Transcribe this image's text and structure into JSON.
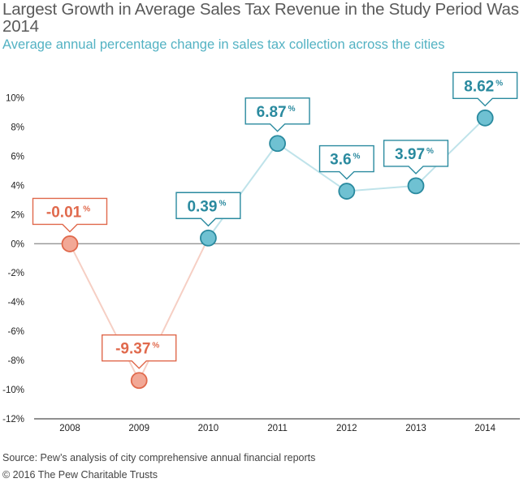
{
  "title": "Largest Growth in Average Sales Tax Revenue in the Study Period Was 2014",
  "subtitle": "Average annual percentage change in sales tax collection across the cities",
  "source": "Source: Pew’s analysis of city comprehensive annual financial reports",
  "copyright": "© 2016 The Pew Charitable Trusts",
  "colors": {
    "negative": "#e0694c",
    "negative_fill": "#f2a896",
    "negative_line": "#f6cfc4",
    "positive": "#2a8a9f",
    "positive_fill": "#6fc1d2",
    "positive_line": "#bfe3ea",
    "zero_line": "#8a8a8a",
    "tick_text": "#222222"
  },
  "chart_data": {
    "type": "line",
    "categories": [
      "2008",
      "2009",
      "2010",
      "2011",
      "2012",
      "2013",
      "2014"
    ],
    "values": [
      -0.01,
      -9.37,
      0.39,
      6.87,
      3.6,
      3.97,
      8.62
    ],
    "data_labels": [
      "-0.01",
      "-9.37",
      "0.39",
      "6.87",
      "3.6",
      "3.97",
      "8.62"
    ],
    "label_unit": "%",
    "y_ticks": [
      "10%",
      "8%",
      "6%",
      "4%",
      "2%",
      "0%",
      "-2%",
      "-4%",
      "-6%",
      "-8%",
      "-10%",
      "-12%"
    ],
    "y_tick_values": [
      10,
      8,
      6,
      4,
      2,
      0,
      -2,
      -4,
      -6,
      -8,
      -10,
      -12
    ],
    "ylim": [
      -12,
      10
    ],
    "grid": false,
    "legend": "none"
  }
}
